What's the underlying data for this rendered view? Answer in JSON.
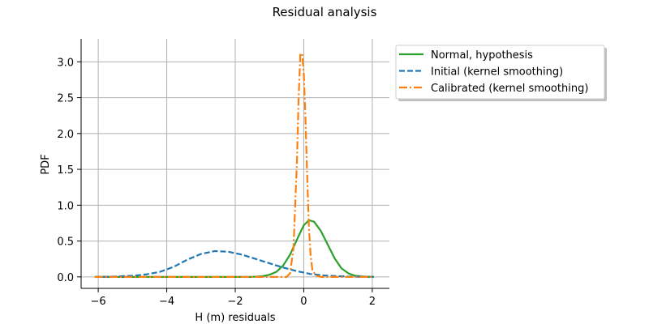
{
  "chart_data": {
    "type": "line",
    "title": "Residual analysis",
    "xlabel": "H (m) residuals",
    "ylabel": "PDF",
    "xlim": [
      -6.5,
      2.5
    ],
    "ylim": [
      -0.16,
      3.32
    ],
    "xticks": [
      -6,
      -4,
      -2,
      0,
      2
    ],
    "xtick_labels": [
      "−6",
      "−4",
      "−2",
      "0",
      "2"
    ],
    "yticks": [
      0.0,
      0.5,
      1.0,
      1.5,
      2.0,
      2.5,
      3.0
    ],
    "ytick_labels": [
      "0.0",
      "0.5",
      "1.0",
      "1.5",
      "2.0",
      "2.5",
      "3.0"
    ],
    "grid": true,
    "legend_position": "outside-right",
    "series": [
      {
        "name": "Normal, hypothesis",
        "color": "#2ca02c",
        "linestyle": "solid",
        "x": [
          -6.1,
          -1.5,
          -1.2,
          -1.0,
          -0.8,
          -0.6,
          -0.4,
          -0.2,
          0.0,
          0.15,
          0.3,
          0.5,
          0.7,
          0.9,
          1.1,
          1.3,
          1.5,
          1.8,
          2.05
        ],
        "y": [
          0.0,
          0.0,
          0.01,
          0.03,
          0.07,
          0.16,
          0.31,
          0.52,
          0.72,
          0.79,
          0.77,
          0.64,
          0.45,
          0.26,
          0.12,
          0.05,
          0.015,
          0.003,
          0.0
        ]
      },
      {
        "name": "Initial (kernel smoothing)",
        "color": "#1f77b4",
        "linestyle": "dashed",
        "x": [
          -6.1,
          -5.5,
          -5.0,
          -4.6,
          -4.2,
          -3.8,
          -3.4,
          -3.0,
          -2.6,
          -2.2,
          -1.8,
          -1.4,
          -1.0,
          -0.6,
          -0.2,
          0.2,
          0.6,
          1.0,
          1.4,
          1.8,
          2.05
        ],
        "y": [
          0.0,
          0.005,
          0.015,
          0.035,
          0.07,
          0.14,
          0.24,
          0.32,
          0.36,
          0.35,
          0.31,
          0.25,
          0.19,
          0.13,
          0.08,
          0.04,
          0.02,
          0.01,
          0.004,
          0.001,
          0.0
        ]
      },
      {
        "name": "Calibrated (kernel smoothing)",
        "color": "#ff7f0e",
        "linestyle": "dashdot",
        "x": [
          -6.1,
          -0.8,
          -0.5,
          -0.4,
          -0.3,
          -0.2,
          -0.15,
          -0.1,
          -0.05,
          0.0,
          0.05,
          0.1,
          0.15,
          0.2,
          0.25,
          0.35,
          0.5,
          2.05
        ],
        "y": [
          0.0,
          0.0,
          0.0,
          0.05,
          0.4,
          1.6,
          2.5,
          3.1,
          3.12,
          2.85,
          2.2,
          1.4,
          0.7,
          0.3,
          0.1,
          0.02,
          0.0,
          0.0
        ]
      }
    ]
  }
}
